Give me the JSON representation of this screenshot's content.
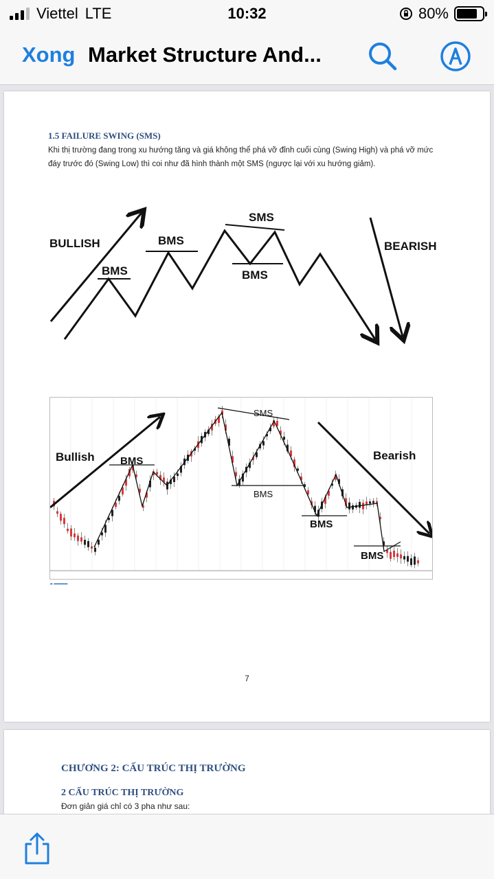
{
  "status_bar": {
    "carrier": "Viettel",
    "network": "LTE",
    "time": "10:32",
    "battery": "80%",
    "battery_level": 0.8,
    "icons": [
      "signal-icon",
      "orientation-lock-icon",
      "battery-icon"
    ]
  },
  "nav_bar": {
    "done_label": "Xong",
    "title": "Market Structure And...",
    "accent_color": "#1e7fe0",
    "icons": [
      "search-icon",
      "markup-icon"
    ]
  },
  "page1": {
    "section_title": "1.5   FAILURE SWING (SMS)",
    "section_body": "Khi thị trường đang trong xu hướng tăng và giá không thể phá vỡ đỉnh cuối cùng (Swing High) và phá vỡ mức đáy trước đó (Swing Low) thì coi như đã hình thành một SMS (ngược lại với xu hướng giảm).",
    "diagram_labels": {
      "bullish": "BULLISH",
      "bms1": "BMS",
      "bms2": "BMS",
      "sms": "SMS",
      "bms3": "BMS",
      "bearish": "BEARISH"
    },
    "chart_labels": {
      "bullish": "Bullish",
      "bms1": "BMS",
      "sms": "SMS",
      "bms2": "BMS",
      "bms3": "BMS",
      "bms4": "BMS",
      "bearish": "Bearish"
    },
    "page_number": "7"
  },
  "page2": {
    "chapter_title": "CHƯƠNG 2:   CẤU TRÚC THỊ TRƯỜNG",
    "sub_title": "2    CẤU TRÚC THỊ TRƯỜNG",
    "body": "Đơn giản giá chỉ có 3 pha như sau:"
  },
  "bottom_bar": {
    "icons": [
      "share-icon"
    ]
  }
}
